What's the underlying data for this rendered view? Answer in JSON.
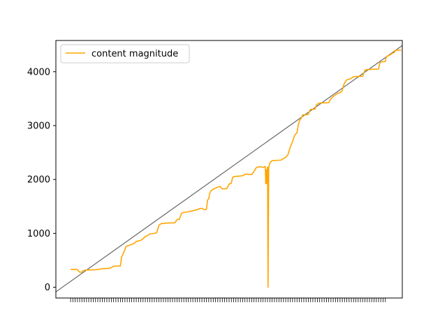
{
  "chart_data": {
    "type": "line",
    "title": "",
    "xlabel": "",
    "ylabel": "",
    "ylim": [
      -200,
      4580
    ],
    "yticks": [
      0,
      1000,
      2000,
      3000,
      4000
    ],
    "ytick_labels": [
      "0",
      "1000",
      "2000",
      "3000",
      "4000"
    ],
    "x_tick_count": 140,
    "x_tick_labels_visible": false,
    "xlim": [
      -6.5,
      146.5
    ],
    "legend": {
      "position": "top-left",
      "entries": [
        "content magnitude"
      ]
    },
    "colors": {
      "series": "#ffa500",
      "reference": "#666666",
      "axes": "#000000"
    },
    "series": [
      {
        "name": "content magnitude",
        "points": [
          [
            0,
            330
          ],
          [
            3,
            330
          ],
          [
            3.5,
            300
          ],
          [
            4,
            280
          ],
          [
            5,
            280
          ],
          [
            5.5,
            310
          ],
          [
            7,
            320
          ],
          [
            8,
            320
          ],
          [
            11,
            325
          ],
          [
            13,
            335
          ],
          [
            14,
            345
          ],
          [
            17,
            350
          ],
          [
            18,
            365
          ],
          [
            19,
            390
          ],
          [
            22,
            395
          ],
          [
            22.5,
            560
          ],
          [
            23,
            600
          ],
          [
            24,
            700
          ],
          [
            24.5,
            760
          ],
          [
            26,
            780
          ],
          [
            28,
            810
          ],
          [
            29,
            850
          ],
          [
            31,
            870
          ],
          [
            32,
            900
          ],
          [
            33,
            940
          ],
          [
            34,
            960
          ],
          [
            35,
            990
          ],
          [
            37,
            1000
          ],
          [
            38,
            1010
          ],
          [
            39,
            1150
          ],
          [
            40,
            1180
          ],
          [
            42,
            1190
          ],
          [
            46,
            1195
          ],
          [
            47,
            1255
          ],
          [
            48,
            1260
          ],
          [
            49,
            1370
          ],
          [
            50,
            1390
          ],
          [
            52,
            1400
          ],
          [
            53,
            1410
          ],
          [
            55,
            1430
          ],
          [
            56,
            1440
          ],
          [
            57,
            1460
          ],
          [
            58,
            1465
          ],
          [
            59,
            1440
          ],
          [
            60,
            1445
          ],
          [
            60.5,
            1620
          ],
          [
            61,
            1640
          ],
          [
            61.5,
            1750
          ],
          [
            62,
            1790
          ],
          [
            63,
            1820
          ],
          [
            64,
            1840
          ],
          [
            65,
            1860
          ],
          [
            66,
            1870
          ],
          [
            67,
            1825
          ],
          [
            69,
            1830
          ],
          [
            70,
            1915
          ],
          [
            71,
            1930
          ],
          [
            71.5,
            2030
          ],
          [
            72,
            2050
          ],
          [
            73,
            2060
          ],
          [
            74,
            2060
          ],
          [
            76,
            2070
          ],
          [
            77,
            2095
          ],
          [
            78,
            2100
          ],
          [
            79,
            2090
          ],
          [
            80,
            2095
          ],
          [
            81,
            2150
          ],
          [
            82,
            2220
          ],
          [
            83,
            2235
          ],
          [
            84,
            2235
          ],
          [
            85,
            2225
          ],
          [
            86,
            2240
          ],
          [
            86.2,
            1920
          ],
          [
            86.4,
            2180
          ],
          [
            86.6,
            1930
          ],
          [
            86.8,
            2130
          ],
          [
            87,
            2230
          ],
          [
            87.2,
            0
          ],
          [
            87.5,
            2220
          ],
          [
            88,
            2310
          ],
          [
            89,
            2350
          ],
          [
            91,
            2355
          ],
          [
            93,
            2360
          ],
          [
            94,
            2390
          ],
          [
            95,
            2410
          ],
          [
            96,
            2460
          ],
          [
            97,
            2600
          ],
          [
            98,
            2700
          ],
          [
            99,
            2820
          ],
          [
            100,
            2870
          ],
          [
            100.5,
            3000
          ],
          [
            101,
            3080
          ],
          [
            102,
            3150
          ],
          [
            102.5,
            3200
          ],
          [
            104,
            3200
          ],
          [
            105,
            3210
          ],
          [
            105.5,
            3270
          ],
          [
            106,
            3300
          ],
          [
            107,
            3300
          ],
          [
            108,
            3310
          ],
          [
            108.5,
            3380
          ],
          [
            109,
            3400
          ],
          [
            110,
            3420
          ],
          [
            114,
            3425
          ],
          [
            115,
            3500
          ],
          [
            116,
            3540
          ],
          [
            117,
            3570
          ],
          [
            118,
            3600
          ],
          [
            119,
            3610
          ],
          [
            120,
            3650
          ],
          [
            120.5,
            3740
          ],
          [
            121,
            3790
          ],
          [
            122,
            3850
          ],
          [
            123,
            3860
          ],
          [
            124,
            3880
          ],
          [
            125,
            3910
          ],
          [
            129,
            3915
          ],
          [
            130,
            4030
          ],
          [
            131,
            4040
          ],
          [
            136,
            4050
          ],
          [
            136.5,
            4150
          ],
          [
            137,
            4180
          ],
          [
            139,
            4190
          ],
          [
            139.5,
            4280
          ],
          [
            140,
            4290
          ],
          [
            141,
            4310
          ],
          [
            142,
            4340
          ],
          [
            143,
            4360
          ],
          [
            143.5,
            4400
          ],
          [
            146,
            4400
          ]
        ]
      },
      {
        "name": "",
        "points": [
          [
            -13,
            -280
          ],
          [
            153,
            4680
          ]
        ]
      }
    ]
  }
}
